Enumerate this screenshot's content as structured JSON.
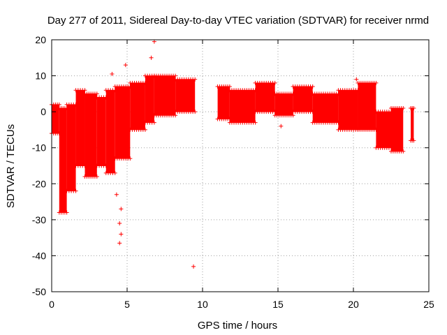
{
  "chart_data": {
    "type": "scatter",
    "title": "Day 277 of 2011, Sidereal Day-to-day VTEC variation (SDTVAR) for receiver nrmd",
    "xlabel": "GPS time / hours",
    "ylabel": "SDTVAR / TECUs",
    "xlim": [
      0,
      25
    ],
    "ylim": [
      -50,
      20
    ],
    "xticks": [
      0,
      5,
      10,
      15,
      20,
      25
    ],
    "xtick_labels": [
      "0",
      "5",
      "10",
      "15",
      "20",
      "25"
    ],
    "yticks": [
      -50,
      -40,
      -30,
      -20,
      -10,
      0,
      10,
      20
    ],
    "ytick_labels": [
      "-50",
      "-40",
      "-30",
      "-20",
      "-10",
      "0",
      "10",
      "20"
    ],
    "grid": true,
    "marker": "+",
    "color": "#ff0000",
    "series": [
      {
        "name": "SDTVAR",
        "bands": [
          {
            "x": [
              0.0,
              0.5
            ],
            "ymin": -6,
            "ymax": 2
          },
          {
            "x": [
              0.5,
              1.0
            ],
            "ymin": -28,
            "ymax": 1
          },
          {
            "x": [
              1.0,
              1.6
            ],
            "ymin": -22,
            "ymax": 2
          },
          {
            "x": [
              1.6,
              2.2
            ],
            "ymin": -15,
            "ymax": 6
          },
          {
            "x": [
              2.2,
              3.0
            ],
            "ymin": -18,
            "ymax": 5
          },
          {
            "x": [
              3.0,
              3.6
            ],
            "ymin": -15,
            "ymax": 4
          },
          {
            "x": [
              3.6,
              4.2
            ],
            "ymin": -17,
            "ymax": 6
          },
          {
            "x": [
              4.2,
              5.2
            ],
            "ymin": -13,
            "ymax": 7
          },
          {
            "x": [
              5.2,
              6.2
            ],
            "ymin": -5,
            "ymax": 8
          },
          {
            "x": [
              6.2,
              6.8
            ],
            "ymin": -3,
            "ymax": 10
          },
          {
            "x": [
              6.8,
              8.2
            ],
            "ymin": -1,
            "ymax": 10
          },
          {
            "x": [
              8.2,
              9.5
            ],
            "ymin": 0,
            "ymax": 9
          },
          {
            "x": [
              11.0,
              11.8
            ],
            "ymin": -2,
            "ymax": 7
          },
          {
            "x": [
              11.8,
              13.5
            ],
            "ymin": -3,
            "ymax": 6
          },
          {
            "x": [
              13.5,
              14.8
            ],
            "ymin": 0,
            "ymax": 8
          },
          {
            "x": [
              14.8,
              16.0
            ],
            "ymin": -1,
            "ymax": 5
          },
          {
            "x": [
              16.0,
              17.3
            ],
            "ymin": 0,
            "ymax": 7
          },
          {
            "x": [
              17.3,
              19.0
            ],
            "ymin": -3,
            "ymax": 5
          },
          {
            "x": [
              19.0,
              20.3
            ],
            "ymin": -5,
            "ymax": 6
          },
          {
            "x": [
              20.3,
              21.5
            ],
            "ymin": -5,
            "ymax": 8
          },
          {
            "x": [
              21.5,
              22.5
            ],
            "ymin": -10,
            "ymax": 0
          },
          {
            "x": [
              22.5,
              23.3
            ],
            "ymin": -11,
            "ymax": 1
          },
          {
            "x": [
              23.8,
              24.0
            ],
            "ymin": -8,
            "ymax": 1
          }
        ],
        "points": [
          {
            "x": 6.8,
            "y": 19.5
          },
          {
            "x": 4.0,
            "y": 10.5
          },
          {
            "x": 4.9,
            "y": 13.0
          },
          {
            "x": 6.6,
            "y": 15.0
          },
          {
            "x": 4.3,
            "y": -23.0
          },
          {
            "x": 4.6,
            "y": -27.0
          },
          {
            "x": 4.5,
            "y": -31.0
          },
          {
            "x": 4.6,
            "y": -34.0
          },
          {
            "x": 4.5,
            "y": -36.5
          },
          {
            "x": 9.4,
            "y": -43.0
          },
          {
            "x": 15.2,
            "y": -4.0
          },
          {
            "x": 20.2,
            "y": 9.0
          }
        ]
      }
    ]
  }
}
